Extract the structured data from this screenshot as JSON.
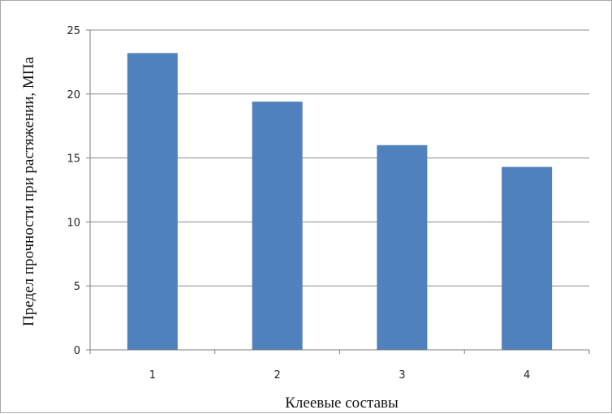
{
  "chart_data": {
    "type": "bar",
    "categories": [
      "1",
      "2",
      "3",
      "4"
    ],
    "values": [
      23.2,
      19.4,
      16.0,
      14.3
    ],
    "title": "",
    "xlabel": "Клеевые составы",
    "ylabel": "Предел прочности при растяжении, МПа",
    "ylim": [
      0,
      25
    ],
    "yticks": [
      "0",
      "5",
      "10",
      "15",
      "20",
      "25"
    ],
    "grid": true,
    "legend": "none",
    "bar_color": "#4f81bd",
    "grid_color": "#8c8c8c"
  }
}
